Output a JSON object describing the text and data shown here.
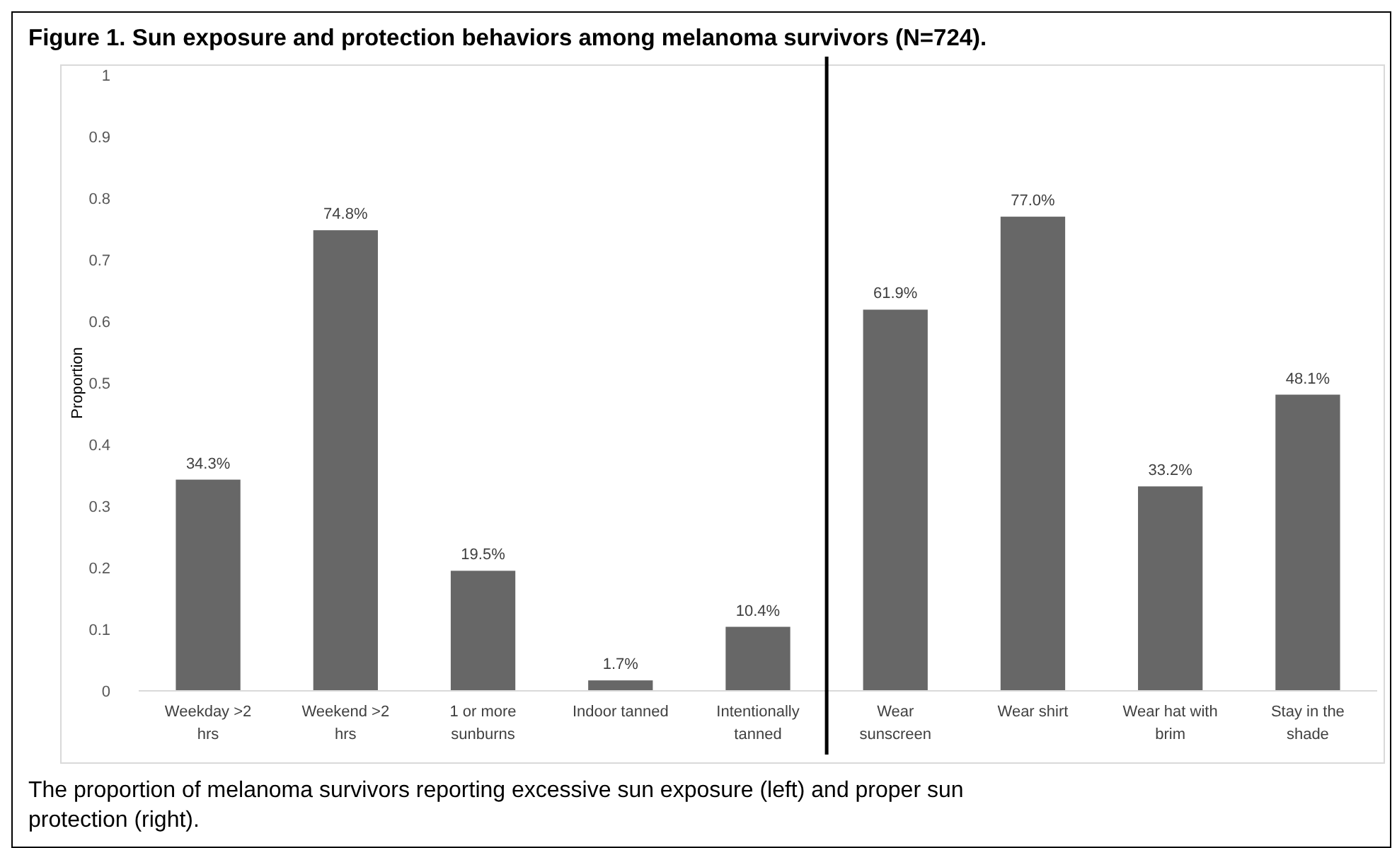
{
  "chart_data": {
    "type": "bar",
    "title": "Figure 1. Sun exposure and protection behaviors among melanoma survivors (N=724).",
    "ylabel": "Proportion",
    "categories": [
      "Weekday >2 hrs",
      "Weekend >2 hrs",
      "1 or more sunburns",
      "Indoor tanned",
      "Intentionally tanned",
      "Wear sunscreen",
      "Wear shirt",
      "Wear hat with brim",
      "Stay in the shade"
    ],
    "values": [
      0.343,
      0.748,
      0.195,
      0.017,
      0.104,
      0.619,
      0.77,
      0.332,
      0.481
    ],
    "value_labels": [
      "34.3%",
      "74.8%",
      "19.5%",
      "1.7%",
      "10.4%",
      "61.9%",
      "77.0%",
      "33.2%",
      "48.1%"
    ],
    "color": "#676767",
    "ylim": [
      0,
      1
    ],
    "yticks": [
      0,
      0.1,
      0.2,
      0.3,
      0.4,
      0.5,
      0.6,
      0.7,
      0.8,
      0.9,
      1
    ],
    "annotations": [
      "The proportion of melanoma survivors reporting excessive sun exposure (left) and proper sun protection (right)."
    ],
    "grid": false
  }
}
